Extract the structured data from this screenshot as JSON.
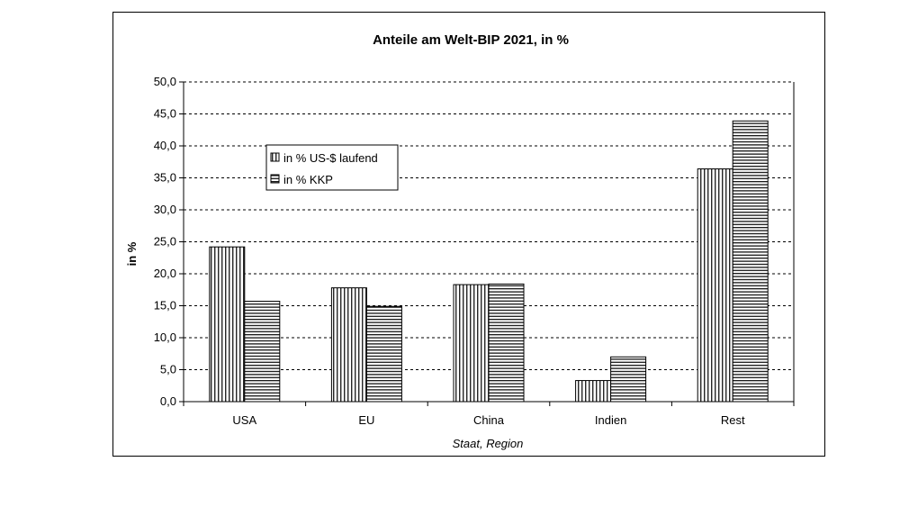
{
  "chart_data": {
    "type": "bar",
    "title": "Anteile am Welt-BIP 2021, in %",
    "xlabel": "Staat, Region",
    "ylabel": "in %",
    "categories": [
      "USA",
      "EU",
      "China",
      "Indien",
      "Rest"
    ],
    "series": [
      {
        "name": "in % US-$ laufend",
        "pattern": "vertical-stripes",
        "values": [
          24.2,
          17.8,
          18.3,
          3.3,
          36.4
        ]
      },
      {
        "name": "in % KKP",
        "pattern": "horizontal-stripes",
        "values": [
          15.7,
          14.9,
          18.4,
          7.0,
          43.9
        ]
      }
    ],
    "ylim": [
      0,
      50
    ],
    "yticks": [
      "0,0",
      "5,0",
      "10,0",
      "15,0",
      "20,0",
      "25,0",
      "30,0",
      "35,0",
      "40,0",
      "45,0",
      "50,0"
    ],
    "grid": true,
    "legend_position": "upper-left inside plot",
    "colors": {
      "bar_stroke": "#000000",
      "grid": "#000000",
      "background": "#ffffff"
    }
  }
}
